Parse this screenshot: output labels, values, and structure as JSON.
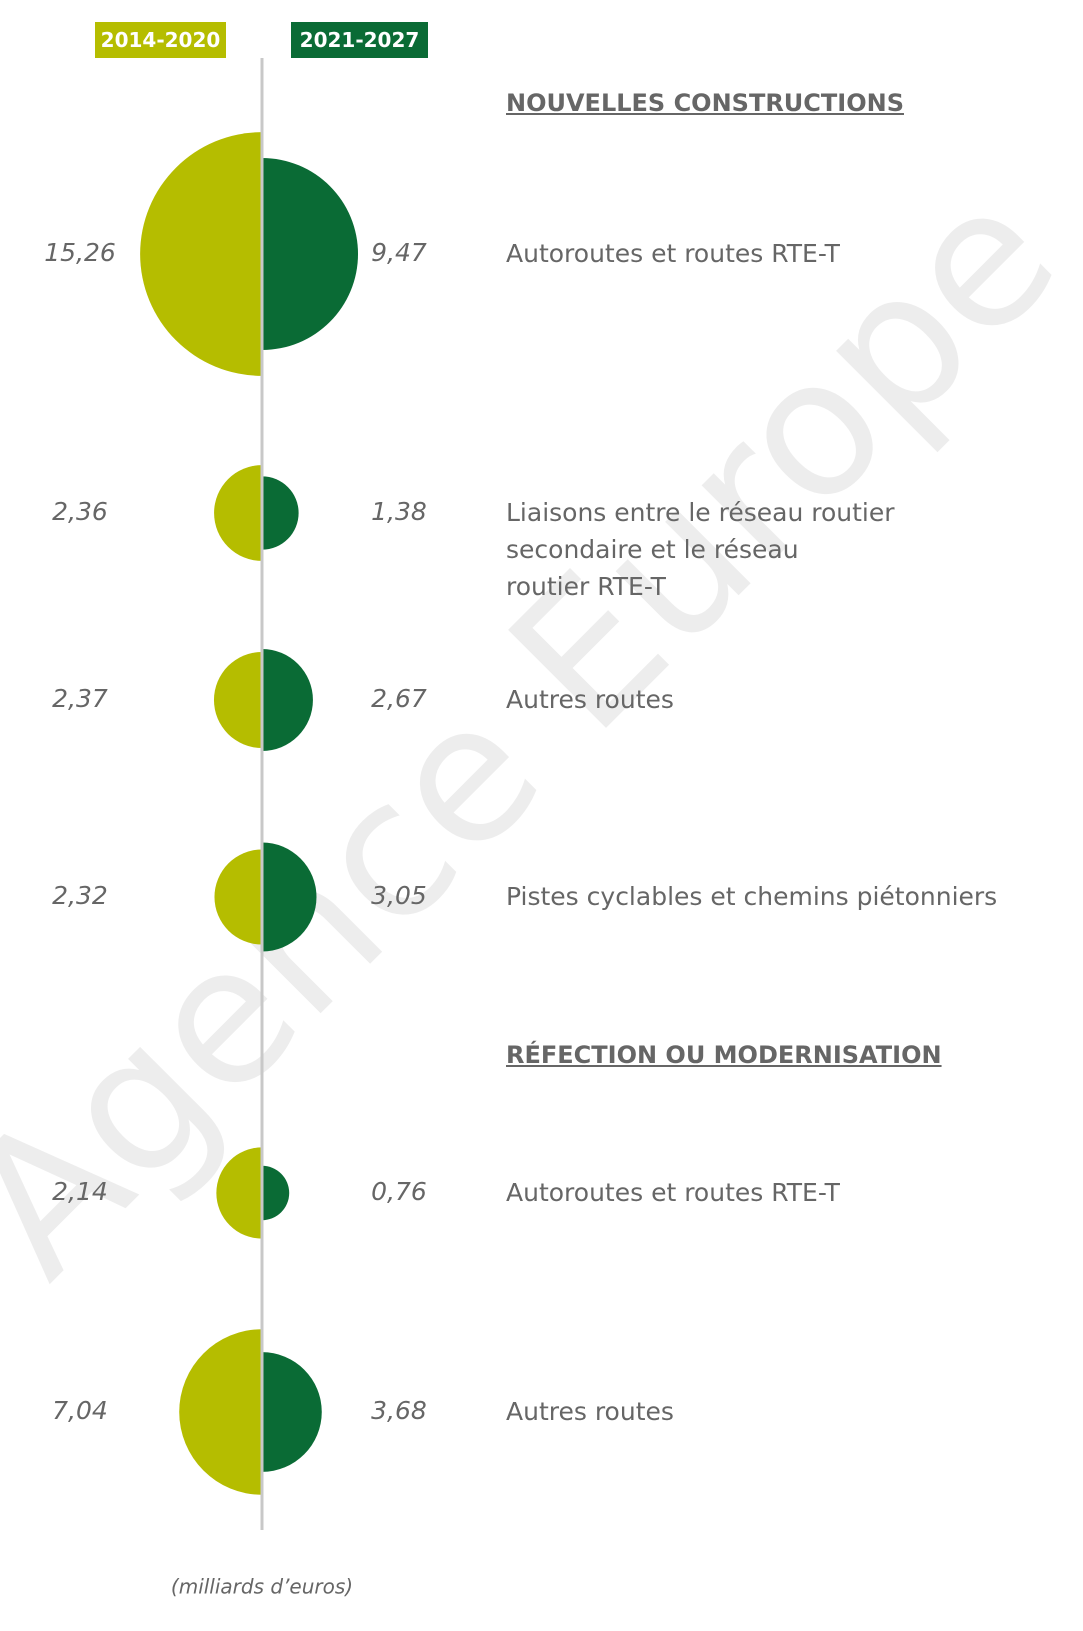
{
  "chart_data": {
    "type": "half-bubble",
    "watermark": "Agence Europe",
    "note": "(milliards d’euros)",
    "legend": [
      {
        "name": "2014-2020",
        "color": "#b5bd00"
      },
      {
        "name": "2021-2027",
        "color": "#0a6b35"
      }
    ],
    "groups": [
      {
        "title": "NOUVELLES CONSTRUCTIONS",
        "categories": [
          "Autoroutes et routes RTE-T",
          "Liaisons entre le réseau routier\nsecondaire et le réseau\nroutier RTE-T",
          "Autres routes",
          "Pistes cyclables et chemins piétonniers"
        ],
        "series": [
          {
            "values": [
              15.26,
              2.36,
              2.37,
              2.32
            ],
            "value_labels": [
              "15,26",
              "2,36",
              "2,37",
              "2,32"
            ]
          },
          {
            "values": [
              9.47,
              1.38,
              2.67,
              3.05
            ],
            "value_labels": [
              "9,47",
              "1,38",
              "2,67",
              "3,05"
            ]
          }
        ]
      },
      {
        "title": "RÉFECTION OU MODERNISATION",
        "categories": [
          "Autoroutes et routes RTE-T",
          "Autres routes"
        ],
        "series": [
          {
            "values": [
              2.14,
              7.04
            ],
            "value_labels": [
              "2,14",
              "7,04"
            ]
          },
          {
            "values": [
              0.76,
              3.68
            ],
            "value_labels": [
              "0,76",
              "3,68"
            ]
          }
        ]
      }
    ]
  }
}
